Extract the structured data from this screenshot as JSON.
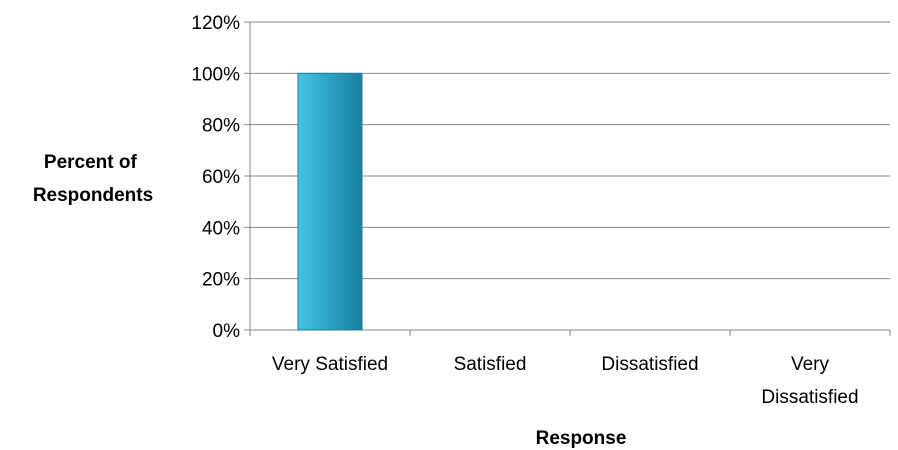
{
  "chart_data": {
    "type": "bar",
    "title": "",
    "xlabel": "Response",
    "ylabel_lines": [
      "Percent of",
      "Respondents"
    ],
    "categories": [
      [
        "Very Satisfied"
      ],
      [
        "Satisfied"
      ],
      [
        "Dissatisfied"
      ],
      [
        "Very",
        "Dissatisfied"
      ]
    ],
    "values": [
      100,
      0,
      0,
      0
    ],
    "ylim": [
      0,
      120
    ],
    "yticks": [
      "0%",
      "20%",
      "40%",
      "60%",
      "80%",
      "100%",
      "120%"
    ],
    "grid": true,
    "legend": "none",
    "colors": {
      "bar": "#2EA6C9",
      "bar_light": "#44C2E3",
      "bar_dark": "#1A7E9C",
      "grid": "#868686"
    }
  }
}
